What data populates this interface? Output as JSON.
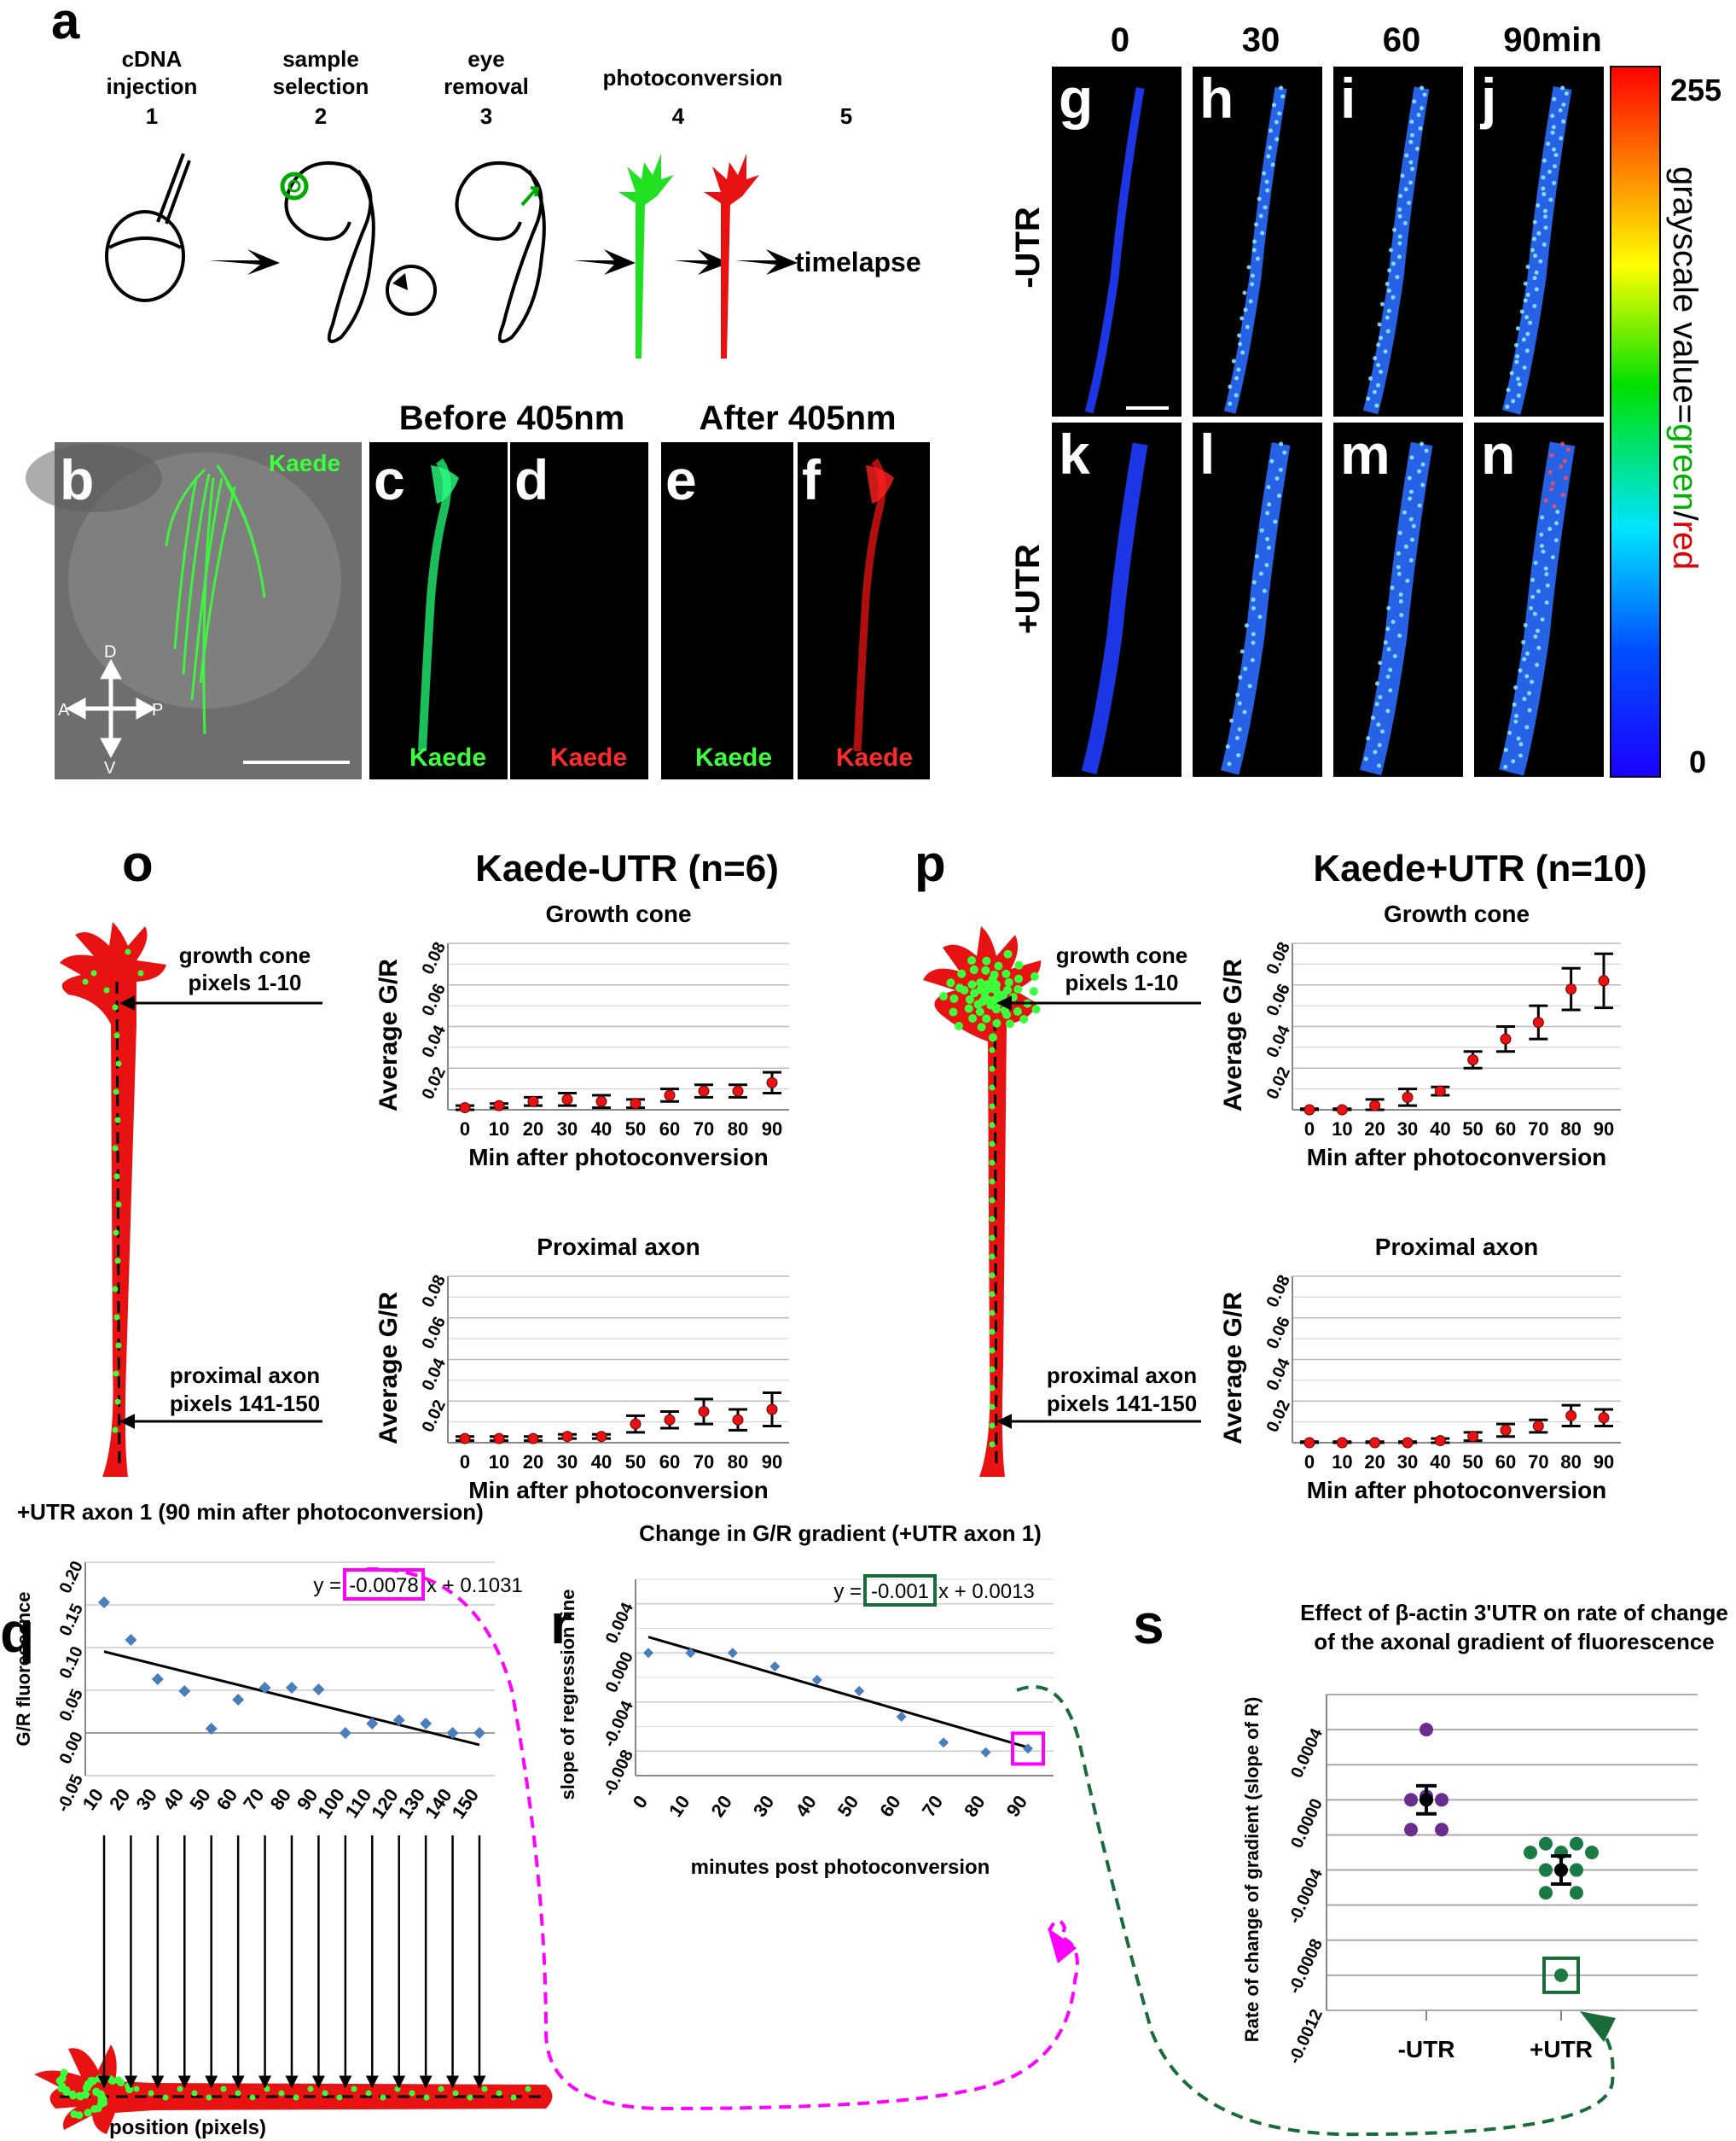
{
  "panels": {
    "a": {
      "letter": "a",
      "steps": [
        {
          "line1": "cDNA",
          "line2": "injection",
          "num": "1"
        },
        {
          "line1": "sample",
          "line2": "selection",
          "num": "2"
        },
        {
          "line1": "eye",
          "line2": "removal",
          "num": "3"
        },
        {
          "line1": "",
          "line2": "photoconversion",
          "num": "4"
        },
        {
          "line1": "",
          "line2": "",
          "num": "5"
        }
      ],
      "timelapse": "timelapse"
    },
    "b": {
      "letter": "b",
      "label": "Kaede",
      "axes": {
        "d": "D",
        "v": "V",
        "a": "A",
        "p": "P"
      }
    },
    "c": {
      "letter": "c",
      "label": "Kaede"
    },
    "d": {
      "letter": "d",
      "label": "Kaede"
    },
    "e": {
      "letter": "e",
      "label": "Kaede"
    },
    "f": {
      "letter": "f",
      "label": "Kaede"
    },
    "before": "Before 405nm",
    "after": "After 405nm",
    "timecourse": {
      "times": [
        "0",
        "30",
        "60",
        "90min"
      ],
      "row_minus": "-UTR",
      "row_plus": "+UTR",
      "letters_top": [
        "g",
        "h",
        "i",
        "j"
      ],
      "letters_bottom": [
        "k",
        "l",
        "m",
        "n"
      ],
      "scale": {
        "max": "255",
        "min": "0",
        "label_pre": "grayscale value=",
        "label_green": "green",
        "label_slash": "/",
        "label_red": "red"
      }
    },
    "o": {
      "letter": "o",
      "title": "Kaede-UTR (n=6)",
      "gc_label1": "growth cone",
      "gc_label2": "pixels 1-10",
      "px_label1": "proximal axon",
      "px_label2": "pixels 141-150"
    },
    "p": {
      "letter": "p",
      "title": "Kaede+UTR (n=10)",
      "gc_label1": "growth cone",
      "gc_label2": "pixels 1-10",
      "px_label1": "proximal axon",
      "px_label2": "pixels 141-150"
    },
    "q": {
      "letter": "q"
    },
    "r": {
      "letter": "r"
    },
    "s": {
      "letter": "s"
    }
  },
  "chart_data": [
    {
      "id": "o-growth-cone",
      "type": "scatter",
      "title": "Growth cone",
      "xlabel": "Min after photoconversion",
      "ylabel": "Average G/R",
      "x": [
        0,
        10,
        20,
        30,
        40,
        50,
        60,
        70,
        80,
        90
      ],
      "y": [
        0.001,
        0.002,
        0.004,
        0.005,
        0.004,
        0.003,
        0.007,
        0.009,
        0.009,
        0.013
      ],
      "err": [
        0.001,
        0.001,
        0.002,
        0.003,
        0.003,
        0.002,
        0.003,
        0.003,
        0.003,
        0.005
      ],
      "yticks": [
        "0.02",
        "0.04",
        "0.06",
        "0.08"
      ],
      "ylim": [
        0,
        0.08
      ]
    },
    {
      "id": "o-proximal-axon",
      "type": "scatter",
      "title": "Proximal axon",
      "xlabel": "Min after photoconversion",
      "ylabel": "Average G/R",
      "x": [
        0,
        10,
        20,
        30,
        40,
        50,
        60,
        70,
        80,
        90
      ],
      "y": [
        0.002,
        0.002,
        0.002,
        0.003,
        0.003,
        0.009,
        0.011,
        0.015,
        0.011,
        0.016
      ],
      "err": [
        0.001,
        0.001,
        0.001,
        0.001,
        0.001,
        0.004,
        0.004,
        0.006,
        0.005,
        0.008
      ],
      "yticks": [
        "0.02",
        "0.04",
        "0.06",
        "0.08"
      ],
      "ylim": [
        0,
        0.08
      ]
    },
    {
      "id": "p-growth-cone",
      "type": "scatter",
      "title": "Growth cone",
      "xlabel": "Min after photoconversion",
      "ylabel": "Average G/R",
      "x": [
        0,
        10,
        20,
        30,
        40,
        50,
        60,
        70,
        80,
        90
      ],
      "y": [
        0.0,
        0.0,
        0.002,
        0.006,
        0.009,
        0.024,
        0.034,
        0.042,
        0.058,
        0.062
      ],
      "err": [
        0.0005,
        0.0005,
        0.003,
        0.004,
        0.002,
        0.004,
        0.006,
        0.008,
        0.01,
        0.013
      ],
      "yticks": [
        "0.02",
        "0.04",
        "0.06",
        "0.08"
      ],
      "ylim": [
        0,
        0.08
      ]
    },
    {
      "id": "p-proximal-axon",
      "type": "scatter",
      "title": "Proximal axon",
      "xlabel": "Min after photoconversion",
      "ylabel": "Average G/R",
      "x": [
        0,
        10,
        20,
        30,
        40,
        50,
        60,
        70,
        80,
        90
      ],
      "y": [
        0.0,
        0.0,
        0.0,
        0.0,
        0.001,
        0.003,
        0.006,
        0.008,
        0.013,
        0.012
      ],
      "err": [
        0.0005,
        0.0005,
        0.0005,
        0.0005,
        0.001,
        0.002,
        0.003,
        0.003,
        0.005,
        0.004
      ],
      "yticks": [
        "0.02",
        "0.04",
        "0.06",
        "0.08"
      ],
      "ylim": [
        0,
        0.08
      ]
    },
    {
      "id": "q",
      "type": "scatter",
      "title": "+UTR axon 1 (90 min after photoconversion)",
      "xlabel": "position (pixels)",
      "ylabel": "G/R fluorescence",
      "x": [
        10,
        20,
        30,
        40,
        50,
        60,
        70,
        80,
        90,
        100,
        110,
        120,
        130,
        140,
        150
      ],
      "y": [
        0.153,
        0.109,
        0.063,
        0.049,
        0.005,
        0.039,
        0.053,
        0.053,
        0.051,
        0.0,
        0.011,
        0.015,
        0.011,
        0.0,
        0.0
      ],
      "equation_pre": "y =",
      "equation_slope": "-0.0078",
      "equation_post": "x + 0.1031",
      "fit": {
        "slope": -0.0078,
        "intercept": 0.1031,
        "unit": 10
      },
      "yticks": [
        "-0.05",
        "0.00",
        "0.05",
        "0.10",
        "0.15",
        "0.20"
      ],
      "ylim": [
        -0.05,
        0.2
      ],
      "xticks": [
        "10",
        "20",
        "30",
        "40",
        "50",
        "60",
        "70",
        "80",
        "90",
        "100",
        "110",
        "120",
        "130",
        "140",
        "150"
      ]
    },
    {
      "id": "r",
      "type": "scatter",
      "title": "Change in G/R gradient (+UTR axon 1)",
      "xlabel": "minutes post photoconversion",
      "ylabel": "slope of regression line",
      "x": [
        0,
        10,
        20,
        30,
        40,
        50,
        60,
        70,
        80,
        90
      ],
      "y": [
        0.0,
        0.0,
        0.0,
        -0.0011,
        -0.0022,
        -0.0031,
        -0.0052,
        -0.0073,
        -0.0081,
        -0.0078
      ],
      "equation_pre": "y =",
      "equation_slope": "-0.001",
      "equation_post": "x + 0.0013",
      "fit": {
        "slope": -0.001,
        "intercept": 0.0013,
        "unit": 10
      },
      "yticks": [
        "-0.008",
        "-0.004",
        "0.000",
        "0.004"
      ],
      "ylim": [
        -0.01,
        0.006
      ],
      "xticks": [
        "0",
        "10",
        "20",
        "30",
        "40",
        "50",
        "60",
        "70",
        "80",
        "90"
      ]
    },
    {
      "id": "s",
      "type": "scatter",
      "title_line1": "Effect of β-actin 3'UTR on rate of change",
      "title_line2": "of the axonal gradient of fluorescence",
      "ylabel": "Rate of change of gradient (slope of R)",
      "categories": [
        "-UTR",
        "+UTR"
      ],
      "yticks": [
        "-0.0012",
        "-0.0008",
        "-0.0004",
        "0.0000",
        "0.0004"
      ],
      "ylim": [
        -0.0012,
        0.0006
      ],
      "series": [
        {
          "category": "-UTR",
          "values": [
            0.0004,
            2e-05,
            0.0,
            0.0,
            -0.00017,
            -0.00017
          ],
          "mean": 0.0,
          "err": 8e-05
        },
        {
          "category": "+UTR",
          "values": [
            -0.00025,
            -0.00025,
            -0.0004,
            -0.0004,
            -0.00053,
            -0.00053,
            -0.0003,
            -0.0003,
            -0.0003,
            -0.001
          ],
          "mean": -0.0004,
          "err": 8e-05
        }
      ]
    }
  ]
}
